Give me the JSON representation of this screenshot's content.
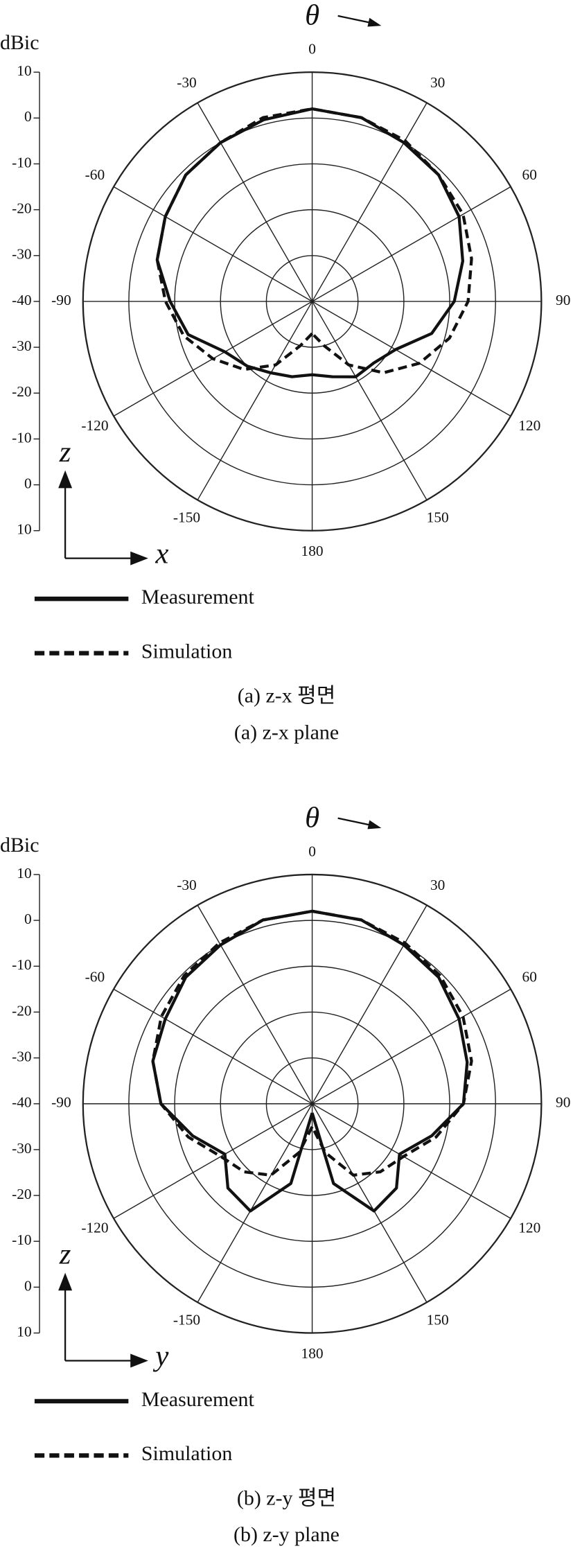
{
  "chart_data": [
    {
      "type": "polar",
      "r_unit": "dBic",
      "theta_label": "θ",
      "axis_labels": [
        "z",
        "x"
      ],
      "captions": [
        "(a) z-x 평면",
        "(a) z-x plane"
      ],
      "rlim": [
        -40,
        10
      ],
      "rticks": [
        -40,
        -30,
        -20,
        -10,
        0,
        10
      ],
      "thetaticks": [
        0,
        30,
        60,
        90,
        120,
        150,
        180,
        -150,
        -120,
        -90,
        -60,
        -30
      ],
      "theta": [
        -180,
        -165,
        -150,
        -135,
        -120,
        -105,
        -90,
        -75,
        -60,
        -45,
        -30,
        -15,
        0,
        15,
        30,
        45,
        60,
        75,
        90,
        105,
        120,
        135,
        150,
        165,
        180
      ],
      "series": [
        {
          "name": "Measurement",
          "color": "#111111",
          "line_style": "solid",
          "values": [
            -24,
            -23,
            -22,
            -20,
            -18,
            -12,
            -9,
            -5,
            -3,
            -1,
            0,
            1,
            2,
            1.5,
            0,
            -1,
            -3,
            -6,
            -9,
            -13,
            -19,
            -21,
            -21,
            -23,
            -24
          ]
        },
        {
          "name": "Simulation",
          "color": "#111111",
          "line_style": "dashed",
          "values": [
            -33,
            -30,
            -24,
            -19,
            -15,
            -11,
            -8,
            -5,
            -3,
            -1,
            0,
            1.5,
            2,
            1.5,
            0.5,
            -1,
            -2,
            -4,
            -6,
            -9,
            -13,
            -18,
            -24,
            -30,
            -33
          ]
        }
      ]
    },
    {
      "type": "polar",
      "r_unit": "dBic",
      "theta_label": "θ",
      "axis_labels": [
        "z",
        "y"
      ],
      "captions": [
        "(b) z-y 평면",
        "(b) z-y plane"
      ],
      "rlim": [
        -40,
        10
      ],
      "rticks": [
        -40,
        -30,
        -20,
        -10,
        0,
        10
      ],
      "thetaticks": [
        0,
        30,
        60,
        90,
        120,
        150,
        180,
        -150,
        -120,
        -90,
        -60,
        -30
      ],
      "theta": [
        -180,
        -165,
        -150,
        -135,
        -120,
        -105,
        -90,
        -75,
        -60,
        -45,
        -30,
        -15,
        0,
        15,
        30,
        45,
        60,
        75,
        90,
        105,
        120,
        135,
        150,
        165,
        180
      ],
      "series": [
        {
          "name": "Measurement",
          "color": "#111111",
          "line_style": "solid",
          "values": [
            -38,
            -22,
            -13,
            -14,
            -18,
            -13,
            -7,
            -4,
            -3,
            -1,
            0,
            1.5,
            2,
            1.5,
            0,
            -1,
            -3,
            -5,
            -7,
            -13,
            -18,
            -14,
            -13,
            -22,
            -38
          ]
        },
        {
          "name": "Simulation",
          "color": "#111111",
          "line_style": "dashed",
          "values": [
            -35,
            -29,
            -22,
            -19,
            -17,
            -12,
            -7,
            -4,
            -2,
            -0.5,
            0.5,
            1.5,
            2,
            1.5,
            0.5,
            -0.5,
            -2,
            -4,
            -7,
            -12,
            -17,
            -19,
            -22,
            -29,
            -35
          ]
        }
      ]
    }
  ]
}
